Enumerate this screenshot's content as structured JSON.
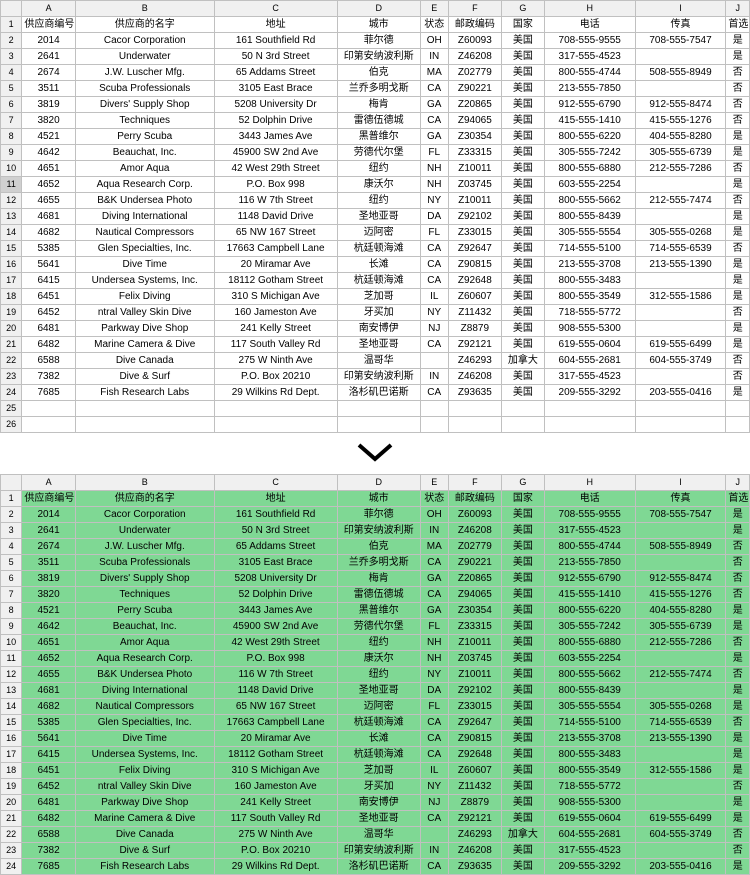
{
  "columns": [
    "A",
    "B",
    "C",
    "D",
    "E",
    "F",
    "G",
    "H",
    "I",
    "J"
  ],
  "headers": [
    "供应商编号",
    "供应商的名字",
    "地址",
    "城市",
    "状态",
    "邮政编码",
    "国家",
    "电话",
    "传真",
    "首选"
  ],
  "green_bg": "#7fd894",
  "top_rows": [
    [
      "2014",
      "Cacor Corporation",
      "161 Southfield Rd",
      "菲尔德",
      "OH",
      "Z60093",
      "美国",
      "708-555-9555",
      "708-555-7547",
      "是"
    ],
    [
      "2641",
      "Underwater",
      "50 N 3rd Street",
      "印第安纳波利斯",
      "IN",
      "Z46208",
      "美国",
      "317-555-4523",
      "",
      "是"
    ],
    [
      "2674",
      "J.W.  Luscher Mfg.",
      "65 Addams Street",
      "伯克",
      "MA",
      "Z02779",
      "美国",
      "800-555-4744",
      "508-555-8949",
      "否"
    ],
    [
      "3511",
      "Scuba Professionals",
      "3105 East Brace",
      "兰乔多明戈斯",
      "CA",
      "Z90221",
      "美国",
      "213-555-7850",
      "",
      "否"
    ],
    [
      "3819",
      "Divers'  Supply Shop",
      "5208 University Dr",
      "梅肯",
      "GA",
      "Z20865",
      "美国",
      "912-555-6790",
      "912-555-8474",
      "否"
    ],
    [
      "3820",
      "Techniques",
      "52 Dolphin Drive",
      "雷德伍德城",
      "CA",
      "Z94065",
      "美国",
      "415-555-1410",
      "415-555-1276",
      "否"
    ],
    [
      "4521",
      "Perry Scuba",
      "3443 James Ave",
      "黑普维尔",
      "GA",
      "Z30354",
      "美国",
      "800-555-6220",
      "404-555-8280",
      "是"
    ],
    [
      "4642",
      "Beauchat, Inc.",
      "45900 SW 2nd Ave",
      "劳德代尔堡",
      "FL",
      "Z33315",
      "美国",
      "305-555-7242",
      "305-555-6739",
      "是"
    ],
    [
      "4651",
      "Amor Aqua",
      "42 West 29th Street",
      "纽约",
      "NH",
      "Z10011",
      "美国",
      "800-555-6880",
      "212-555-7286",
      "否"
    ],
    [
      "4652",
      "Aqua Research Corp.",
      "P.O. Box 998",
      "康沃尔",
      "NH",
      "Z03745",
      "美国",
      "603-555-2254",
      "",
      "是"
    ],
    [
      "4655",
      "B&K Undersea Photo",
      "116 W 7th Street",
      "纽约",
      "NY",
      "Z10011",
      "美国",
      "800-555-5662",
      "212-555-7474",
      "否"
    ],
    [
      "4681",
      "Diving International",
      "1148 David Drive",
      "圣地亚哥",
      "DA",
      "Z92102",
      "美国",
      "800-555-8439",
      "",
      "是"
    ],
    [
      "4682",
      "Nautical Compressors",
      "65 NW 167 Street",
      "迈阿密",
      "FL",
      "Z33015",
      "美国",
      "305-555-5554",
      "305-555-0268",
      "是"
    ],
    [
      "5385",
      "Glen Specialties, Inc.",
      "17663 Campbell Lane",
      "杭廷顿海滩",
      "CA",
      "Z92647",
      "美国",
      "714-555-5100",
      "714-555-6539",
      "否"
    ],
    [
      "5641",
      "Dive Time",
      "20 Miramar Ave",
      "长滩",
      "CA",
      "Z90815",
      "美国",
      "213-555-3708",
      "213-555-1390",
      "是"
    ],
    [
      "6415",
      "Undersea Systems, Inc.",
      "18112 Gotham Street",
      "杭廷顿海滩",
      "CA",
      "Z92648",
      "美国",
      "800-555-3483",
      "",
      "是"
    ],
    [
      "6451",
      "Felix Diving",
      "310 S Michigan Ave",
      "芝加哥",
      "IL",
      "Z60607",
      "美国",
      "800-555-3549",
      "312-555-1586",
      "是"
    ],
    [
      "6452",
      "ntral Valley Skin Dive",
      "160 Jameston Ave",
      "牙买加",
      "NY",
      "Z11432",
      "美国",
      "718-555-5772",
      "",
      "否"
    ],
    [
      "6481",
      "Parkway Dive Shop",
      "241 Kelly Street",
      "南安博伊",
      "NJ",
      "Z8879",
      "美国",
      "908-555-5300",
      "",
      "是"
    ],
    [
      "6482",
      "Marine Camera & Dive",
      "117 South Valley Rd",
      "圣地亚哥",
      "CA",
      "Z92121",
      "美国",
      "619-555-0604",
      "619-555-6499",
      "是"
    ],
    [
      "6588",
      "Dive Canada",
      "275 W Ninth Ave",
      "温哥华",
      "",
      "Z46293",
      "加拿大",
      "604-555-2681",
      "604-555-3749",
      "否"
    ],
    [
      "7382",
      "Dive & Surf",
      "P.O. Box 20210",
      "印第安纳波利斯",
      "IN",
      "Z46208",
      "美国",
      "317-555-4523",
      "",
      "否"
    ],
    [
      "7685",
      "Fish Research Labs",
      "29 Wilkins Rd Dept. ",
      "洛杉矶巴诺斯",
      "CA",
      "Z93635",
      "美国",
      "209-555-3292",
      "203-555-0416",
      "是"
    ]
  ],
  "bot_rows": [
    [
      "2014",
      "Cacor Corporation",
      "161 Southfield Rd",
      "菲尔德",
      "OH",
      "Z60093",
      "美国",
      "708-555-9555",
      "708-555-7547",
      "是"
    ],
    [
      "2641",
      "Underwater",
      "50 N 3rd Street",
      "印第安纳波利斯",
      "IN",
      "Z46208",
      "美国",
      "317-555-4523",
      "",
      "是"
    ],
    [
      "2674",
      "J.W.  Luscher Mfg.",
      "65 Addams Street",
      "伯克",
      "MA",
      "Z02779",
      "美国",
      "800-555-4744",
      "508-555-8949",
      "否"
    ],
    [
      "3511",
      "Scuba Professionals",
      "3105 East Brace",
      "兰乔多明戈斯",
      "CA",
      "Z90221",
      "美国",
      "213-555-7850",
      "",
      "否"
    ],
    [
      "3819",
      "Divers'  Supply Shop",
      "5208 University Dr",
      "梅肯",
      "GA",
      "Z20865",
      "美国",
      "912-555-6790",
      "912-555-8474",
      "否"
    ],
    [
      "3820",
      "Techniques",
      "52 Dolphin Drive",
      "雷德伍德城",
      "CA",
      "Z94065",
      "美国",
      "415-555-1410",
      "415-555-1276",
      "否"
    ],
    [
      "4521",
      "Perry Scuba",
      "3443 James Ave",
      "黑普维尔",
      "GA",
      "Z30354",
      "美国",
      "800-555-6220",
      "404-555-8280",
      "是"
    ],
    [
      "4642",
      "Beauchat, Inc.",
      "45900 SW 2nd Ave",
      "劳德代尔堡",
      "FL",
      "Z33315",
      "美国",
      "305-555-7242",
      "305-555-6739",
      "是"
    ],
    [
      "4651",
      "Amor Aqua",
      "42 West 29th Street",
      "纽约",
      "NH",
      "Z10011",
      "美国",
      "800-555-6880",
      "212-555-7286",
      "否"
    ],
    [
      "4652",
      "Aqua Research Corp.",
      "P.O. Box 998",
      "康沃尔",
      "NH",
      "Z03745",
      "美国",
      "603-555-2254",
      "",
      "是"
    ],
    [
      "4655",
      "B&K Undersea Photo",
      "116 W 7th Street",
      "纽约",
      "NY",
      "Z10011",
      "美国",
      "800-555-5662",
      "212-555-7474",
      "否"
    ],
    [
      "4681",
      "Diving International",
      "1148 David Drive",
      "圣地亚哥",
      "DA",
      "Z92102",
      "美国",
      "800-555-8439",
      "",
      "是"
    ],
    [
      "4682",
      "Nautical Compressors",
      "65 NW 167 Street",
      "迈阿密",
      "FL",
      "Z33015",
      "美国",
      "305-555-5554",
      "305-555-0268",
      "是"
    ],
    [
      "5385",
      "Glen Specialties, Inc.",
      "17663 Campbell Lane",
      "杭廷顿海滩",
      "CA",
      "Z92647",
      "美国",
      "714-555-5100",
      "714-555-6539",
      "否"
    ],
    [
      "5641",
      "Dive Time",
      "20 Miramar Ave",
      "长滩",
      "CA",
      "Z90815",
      "美国",
      "213-555-3708",
      "213-555-1390",
      "是"
    ],
    [
      "6415",
      "Undersea Systems, Inc.",
      "18112 Gotham Street",
      "杭廷顿海滩",
      "CA",
      "Z92648",
      "美国",
      "800-555-3483",
      "",
      "是"
    ],
    [
      "6451",
      "Felix Diving",
      "310 S Michigan Ave",
      "芝加哥",
      "IL",
      "Z60607",
      "美国",
      "800-555-3549",
      "312-555-1586",
      "是"
    ],
    [
      "6452",
      "ntral Valley Skin Dive",
      "160 Jameston Ave",
      "牙买加",
      "NY",
      "Z11432",
      "美国",
      "718-555-5772",
      "",
      "否"
    ],
    [
      "6481",
      "Parkway Dive Shop",
      "241 Kelly Street",
      "南安博伊",
      "NJ",
      "Z8879",
      "美国",
      "908-555-5300",
      "",
      "是"
    ],
    [
      "6482",
      "Marine Camera & Dive",
      "117 South Valley Rd",
      "圣地亚哥",
      "CA",
      "Z92121",
      "美国",
      "619-555-0604",
      "619-555-6499",
      "是"
    ],
    [
      "6588",
      "Dive Canada",
      "275 W Ninth Ave",
      "温哥华",
      "",
      "Z46293",
      "加拿大",
      "604-555-2681",
      "604-555-3749",
      "否"
    ],
    [
      "7382",
      "Dive & Surf",
      "P.O. Box 20210",
      "印第安纳波利斯",
      "IN",
      "Z46208",
      "美国",
      "317-555-4523",
      "",
      "否"
    ],
    [
      "7685",
      "Fish Research Labs",
      "29 Wilkins Rd Dept. ",
      "洛杉矶巴诺斯",
      "CA",
      "Z93635",
      "美国",
      "209-555-3292",
      "203-555-0416",
      "是"
    ]
  ],
  "top_selected_row_index": 9,
  "top_blank_tail": 2
}
